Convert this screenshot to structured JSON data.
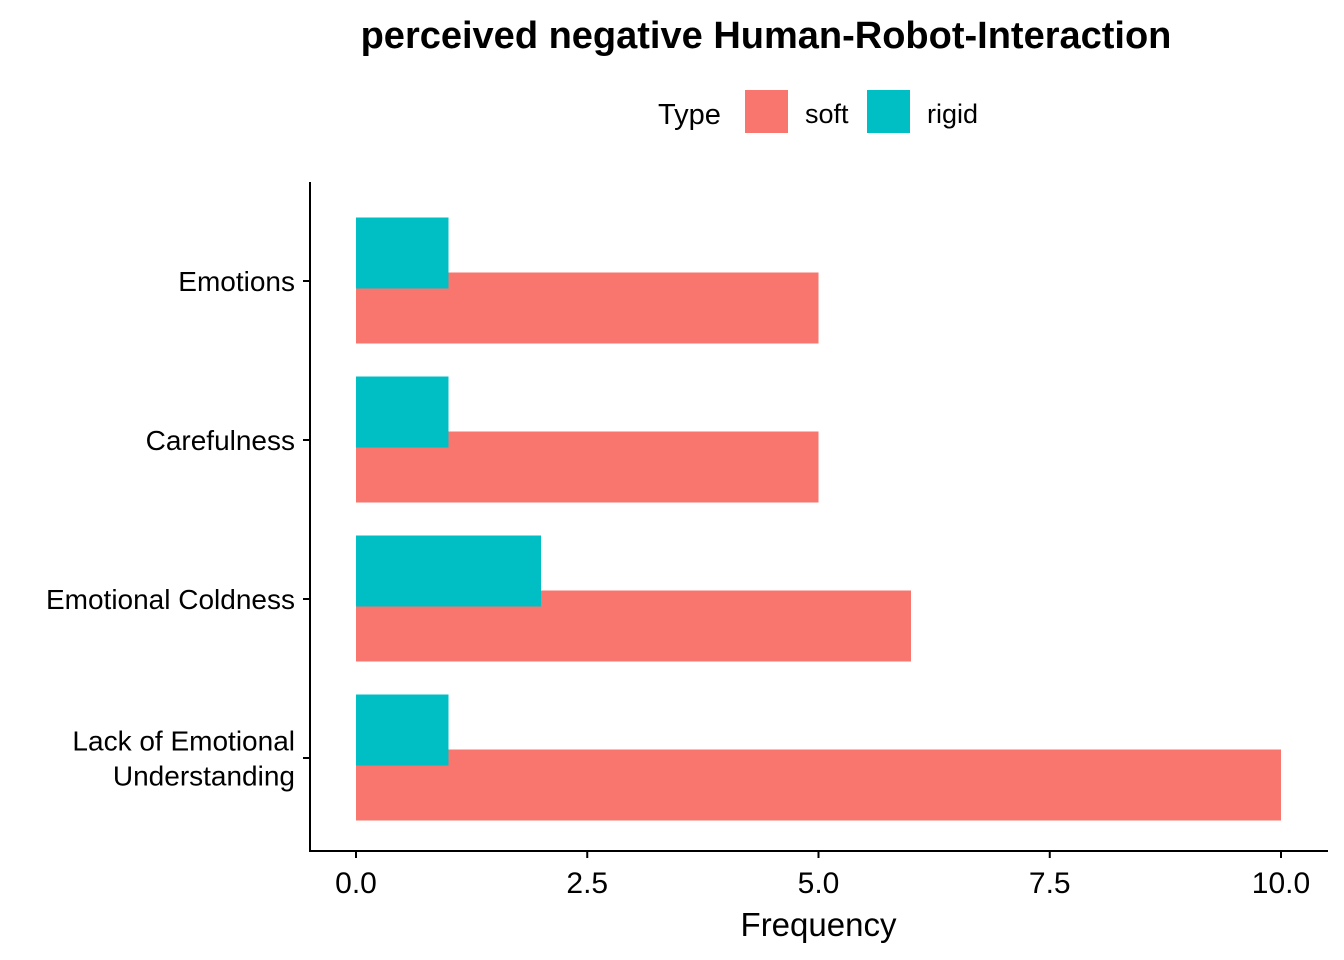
{
  "chart_data": {
    "type": "bar",
    "orientation": "horizontal",
    "title": "perceived negative Human-Robot-Interaction",
    "xlabel": "Frequency",
    "ylabel": "",
    "categories": [
      [
        "Emotions"
      ],
      [
        "Carefulness"
      ],
      [
        "Emotional Coldness"
      ],
      [
        "Lack of Emotional",
        "Understanding"
      ]
    ],
    "series": [
      {
        "name": "soft",
        "color": "#F8766D",
        "values": [
          5,
          5,
          6,
          10
        ]
      },
      {
        "name": "rigid",
        "color": "#00BFC4",
        "values": [
          1,
          1,
          2,
          1
        ]
      }
    ],
    "xlim": [
      0,
      10
    ],
    "xticks": [
      0,
      2.5,
      5,
      7.5,
      10
    ],
    "xtick_labels": [
      "0.0",
      "2.5",
      "5.0",
      "7.5",
      "10.0"
    ],
    "legend": {
      "title": "Type",
      "position": "top",
      "entries": [
        "soft",
        "rigid"
      ]
    },
    "grid": false
  }
}
